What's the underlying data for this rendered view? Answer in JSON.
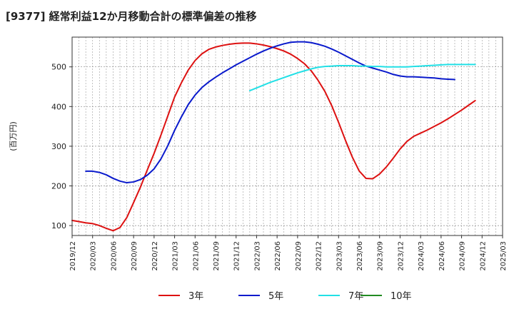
{
  "chart_data": {
    "type": "line",
    "title": "[9377]  経常利益12か月移動合計の標準偏差の推移",
    "ylabel": "(百万円)",
    "ylim": [
      75,
      575
    ],
    "yticks": [
      100,
      200,
      300,
      400,
      500
    ],
    "grid": true,
    "legend_position": "bottom",
    "x_labels": [
      "2019/12",
      "2020/03",
      "2020/06",
      "2020/09",
      "2020/12",
      "2021/03",
      "2021/06",
      "2021/09",
      "2021/12",
      "2022/03",
      "2022/06",
      "2022/09",
      "2022/12",
      "2023/03",
      "2023/06",
      "2023/09",
      "2023/12",
      "2024/03",
      "2024/06",
      "2024/09",
      "2024/12",
      "2025/03"
    ],
    "series": [
      {
        "name": "3年",
        "color": "#dd1111",
        "start_index": 0,
        "values": [
          113,
          110,
          107,
          105,
          100,
          93,
          87,
          95,
          120,
          158,
          197,
          240,
          282,
          328,
          376,
          424,
          460,
          492,
          516,
          533,
          544,
          550,
          554,
          557,
          559,
          560,
          560,
          558,
          555,
          551,
          546,
          540,
          532,
          521,
          508,
          490,
          466,
          438,
          402,
          360,
          315,
          273,
          238,
          219,
          218,
          230,
          248,
          270,
          293,
          312,
          325,
          333,
          341,
          350,
          359,
          369,
          380,
          391,
          403,
          415
        ]
      },
      {
        "name": "5年",
        "color": "#0a1acc",
        "start_index": 2,
        "values": [
          237,
          237,
          234,
          228,
          219,
          212,
          208,
          210,
          216,
          227,
          243,
          268,
          301,
          340,
          374,
          405,
          429,
          448,
          462,
          474,
          485,
          495,
          505,
          514,
          523,
          532,
          540,
          547,
          553,
          558,
          562,
          563,
          563,
          561,
          557,
          552,
          545,
          537,
          528,
          519,
          510,
          502,
          497,
          492,
          487,
          481,
          477,
          475,
          475,
          474,
          473,
          472,
          470,
          469,
          468
        ]
      },
      {
        "name": "7年",
        "color": "#22e0e6",
        "start_index": 26,
        "values": [
          440,
          447,
          454,
          461,
          467,
          473,
          479,
          485,
          490,
          495,
          499,
          501,
          502,
          503,
          503,
          503,
          502,
          502,
          501,
          501,
          500,
          500,
          500,
          500,
          501,
          502,
          503,
          504,
          505,
          506,
          506,
          506,
          506,
          506
        ]
      },
      {
        "name": "10年",
        "color": "#228b22",
        "start_index": 0,
        "values": []
      }
    ]
  }
}
